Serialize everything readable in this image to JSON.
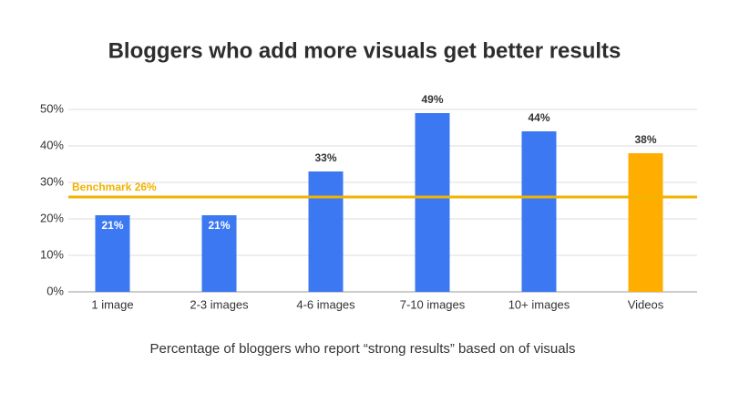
{
  "chart_data": {
    "type": "bar",
    "title": "Bloggers who add more visuals get better results",
    "subtitle": "Percentage of bloggers who report “strong results” based on of visuals",
    "categories": [
      "1 image",
      "2-3 images",
      "4-6 images",
      "7-10 images",
      "10+ images",
      "Videos"
    ],
    "values": [
      21,
      21,
      33,
      49,
      44,
      38
    ],
    "value_labels": [
      "21%",
      "21%",
      "33%",
      "49%",
      "44%",
      "38%"
    ],
    "colors": [
      "#3b78f2",
      "#3b78f2",
      "#3b78f2",
      "#3b78f2",
      "#3b78f2",
      "#ffae00"
    ],
    "ylim": [
      0,
      50
    ],
    "yticks": [
      {
        "value": 0,
        "label": "0%"
      },
      {
        "value": 10,
        "label": "10%"
      },
      {
        "value": 20,
        "label": "20%"
      },
      {
        "value": 30,
        "label": "30%"
      },
      {
        "value": 40,
        "label": "40%"
      },
      {
        "value": 50,
        "label": "50%"
      }
    ],
    "grid": true,
    "benchmark": {
      "label": "Benchmark 26%",
      "value": 26,
      "color": "#f2b200"
    }
  }
}
